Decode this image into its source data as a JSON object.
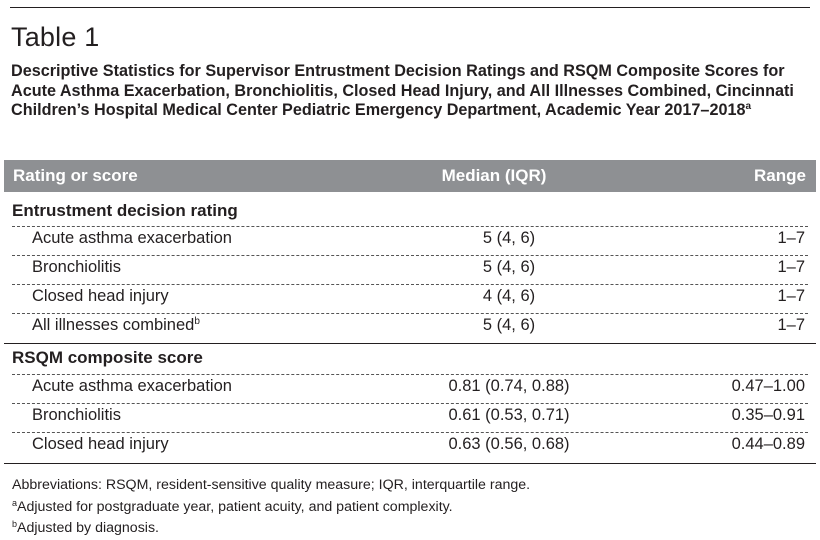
{
  "table_label": "Table 1",
  "caption": {
    "text": "Descriptive Statistics for Supervisor Entrustment Decision Ratings and RSQM Composite Scores for Acute Asthma Exacerbation, Bronchiolitis, Closed Head Injury, and All Illnesses Combined, Cincinnati Children’s Hospital Medical Center Pediatric Emergency Department, Academic Year 2017–2018",
    "note_mark": "a"
  },
  "columns": [
    "Rating or score",
    "Median (IQR)",
    "Range"
  ],
  "sections": [
    {
      "title": "Entrustment decision rating",
      "rows": [
        {
          "name": "Acute asthma exacerbation",
          "mark": "",
          "median": "5 (4, 6)",
          "range": "1–7"
        },
        {
          "name": "Bronchiolitis",
          "mark": "",
          "median": "5 (4, 6)",
          "range": "1–7"
        },
        {
          "name": "Closed head injury",
          "mark": "",
          "median": "4 (4, 6)",
          "range": "1–7"
        },
        {
          "name": "All illnesses combined",
          "mark": "b",
          "median": "5 (4, 6)",
          "range": "1–7"
        }
      ]
    },
    {
      "title": "RSQM composite score",
      "rows": [
        {
          "name": "Acute asthma exacerbation",
          "mark": "",
          "median": "0.81 (0.74, 0.88)",
          "range": "0.47–1.00"
        },
        {
          "name": "Bronchiolitis",
          "mark": "",
          "median": "0.61 (0.53, 0.71)",
          "range": "0.35–0.91"
        },
        {
          "name": "Closed head injury",
          "mark": "",
          "median": "0.63 (0.56, 0.68)",
          "range": "0.44–0.89"
        }
      ]
    }
  ],
  "footnotes": {
    "abbreviations": "Abbreviations: RSQM, resident-sensitive quality measure; IQR, interquartile range.",
    "a_mark": "a",
    "a_text": "Adjusted for postgraduate year, patient acuity, and patient complexity.",
    "b_mark": "b",
    "b_text": "Adjusted by diagnosis."
  },
  "colors": {
    "header_bg": "#8e9093",
    "header_text": "#ffffff",
    "text": "#231f20"
  }
}
